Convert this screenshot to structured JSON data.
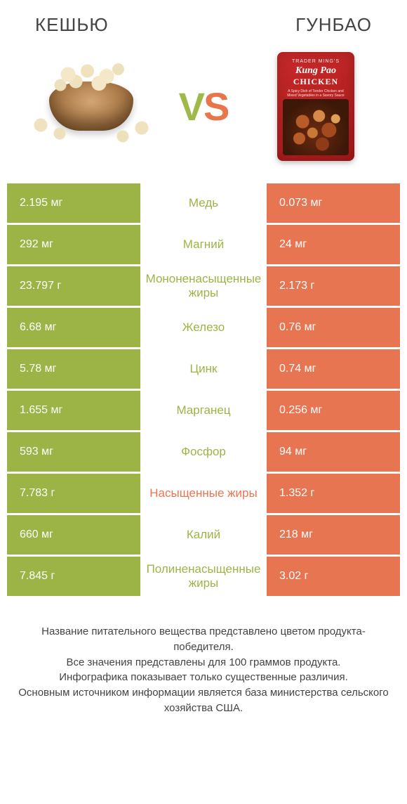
{
  "colors": {
    "left_bar": "#9cb445",
    "right_bar": "#e87552",
    "label_left_win": "#9cb445",
    "label_right_win": "#e87552",
    "text_white": "#ffffff"
  },
  "header": {
    "left_title": "КЕШЬЮ",
    "right_title": "ГУНБАО",
    "vs_v": "V",
    "vs_s": "S"
  },
  "package": {
    "brand": "TRADER MING'S",
    "name1": "Kung Pao",
    "name2": "CHICKEN",
    "desc": "A Spicy Dish of Tender Chicken and Mixed Vegetables in a Savory Sauce"
  },
  "rows": [
    {
      "left": "2.195 мг",
      "label": "Медь",
      "right": "0.073 мг",
      "winner": "left"
    },
    {
      "left": "292 мг",
      "label": "Магний",
      "right": "24 мг",
      "winner": "left"
    },
    {
      "left": "23.797 г",
      "label": "Мононенасыщенные жиры",
      "right": "2.173 г",
      "winner": "left"
    },
    {
      "left": "6.68 мг",
      "label": "Железо",
      "right": "0.76 мг",
      "winner": "left"
    },
    {
      "left": "5.78 мг",
      "label": "Цинк",
      "right": "0.74 мг",
      "winner": "left"
    },
    {
      "left": "1.655 мг",
      "label": "Марганец",
      "right": "0.256 мг",
      "winner": "left"
    },
    {
      "left": "593 мг",
      "label": "Фосфор",
      "right": "94 мг",
      "winner": "left"
    },
    {
      "left": "7.783 г",
      "label": "Насыщенные жиры",
      "right": "1.352 г",
      "winner": "right"
    },
    {
      "left": "660 мг",
      "label": "Калий",
      "right": "218 мг",
      "winner": "left"
    },
    {
      "left": "7.845 г",
      "label": "Полиненасыщенные жиры",
      "right": "3.02 г",
      "winner": "left"
    }
  ],
  "footer_lines": [
    "Название питательного вещества представлено цветом продукта-победителя.",
    "Все значения представлены для 100 граммов продукта.",
    "Инфографика показывает только существенные различия.",
    "Основным источником информации является база министерства сельского хозяйства США."
  ]
}
